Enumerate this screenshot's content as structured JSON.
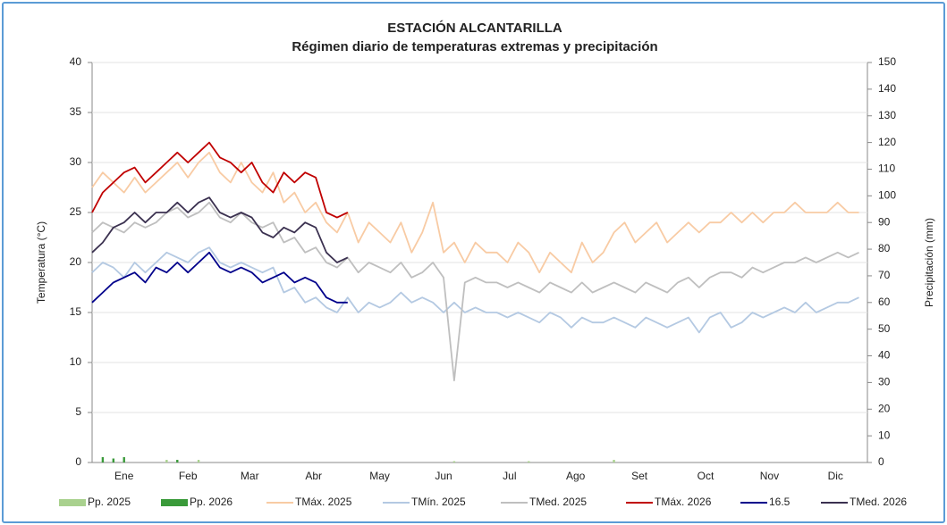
{
  "chart_data": {
    "type": "line",
    "title": "ESTACIÓN ALCANTARILLA",
    "subtitle": "Régimen diario de temperaturas extremas y precipitación",
    "y_label": "Temperatura (°C)",
    "y2_label": "Precipitación (mm)",
    "xlim": [
      1,
      365
    ],
    "xticks": [
      {
        "value": 16,
        "label": "Ene"
      },
      {
        "value": 46,
        "label": "Feb"
      },
      {
        "value": 75,
        "label": "Mar"
      },
      {
        "value": 105,
        "label": "Abr"
      },
      {
        "value": 136,
        "label": "May"
      },
      {
        "value": 166,
        "label": "Jun"
      },
      {
        "value": 197,
        "label": "Jul"
      },
      {
        "value": 228,
        "label": "Ago"
      },
      {
        "value": 258,
        "label": "Set"
      },
      {
        "value": 289,
        "label": "Oct"
      },
      {
        "value": 319,
        "label": "Nov"
      },
      {
        "value": 350,
        "label": "Dic"
      }
    ],
    "ylim": [
      0,
      40
    ],
    "yticks": [
      0,
      5,
      10,
      15,
      20,
      25,
      30,
      35,
      40
    ],
    "y2lim": [
      0,
      150
    ],
    "y2ticks": [
      0,
      10,
      20,
      30,
      40,
      50,
      60,
      70,
      80,
      90,
      100,
      110,
      120,
      130,
      140,
      150
    ],
    "grid": true,
    "legend": "bottom",
    "x": [
      1,
      6,
      11,
      16,
      21,
      26,
      31,
      36,
      41,
      46,
      51,
      56,
      61,
      66,
      71,
      76,
      81,
      86,
      91,
      96,
      101,
      106,
      111,
      116,
      121,
      126,
      131,
      136,
      141,
      146,
      151,
      156,
      161,
      166,
      171,
      176,
      181,
      186,
      191,
      196,
      201,
      206,
      211,
      216,
      221,
      226,
      231,
      236,
      241,
      246,
      251,
      256,
      261,
      266,
      271,
      276,
      281,
      286,
      291,
      296,
      301,
      306,
      311,
      316,
      321,
      326,
      331,
      336,
      341,
      346,
      351,
      356,
      361
    ],
    "series": [
      {
        "name": "Pp. 2025",
        "type": "bar",
        "axis": "y2",
        "color": "#a9d18e",
        "x": [
          36,
          51,
          171,
          206,
          246
        ],
        "values": [
          1,
          1,
          0.5,
          0.5,
          1
        ]
      },
      {
        "name": "Pp. 2026",
        "type": "bar",
        "axis": "y2",
        "color": "#3a9a3a",
        "x": [
          6,
          11,
          16,
          41
        ],
        "values": [
          2,
          1.5,
          2,
          1
        ]
      },
      {
        "name": "TMáx. 2025",
        "type": "line",
        "color": "#f8cba4",
        "values": [
          27.5,
          29,
          28,
          27,
          28.5,
          27,
          28,
          29,
          30,
          28.5,
          30,
          31,
          29,
          28,
          30,
          28,
          27,
          29,
          26,
          27,
          25,
          26,
          24,
          23,
          25,
          22,
          24,
          23,
          22,
          24,
          21,
          23,
          26,
          21,
          22,
          20,
          22,
          21,
          21,
          20,
          22,
          21,
          19,
          21,
          20,
          19,
          22,
          20,
          21,
          23,
          24,
          22,
          23,
          24,
          22,
          23,
          24,
          23,
          24,
          24,
          25,
          24,
          25,
          24,
          25,
          25,
          26,
          25,
          25,
          25,
          26,
          25,
          25
        ]
      },
      {
        "name": "TMín. 2025",
        "type": "line",
        "color": "#b4c9e2",
        "values": [
          19,
          20,
          19.5,
          18.5,
          20,
          19,
          20,
          21,
          20.5,
          20,
          21,
          21.5,
          20,
          19.5,
          20,
          19.5,
          19,
          19.5,
          17,
          17.5,
          16,
          16.5,
          15.5,
          15,
          16.5,
          15,
          16,
          15.5,
          16,
          17,
          16,
          16.5,
          16,
          15,
          16,
          15,
          15.5,
          15,
          15,
          14.5,
          15,
          14.5,
          14,
          15,
          14.5,
          13.5,
          14.5,
          14,
          14,
          14.5,
          14,
          13.5,
          14.5,
          14,
          13.5,
          14,
          14.5,
          13,
          14.5,
          15,
          13.5,
          14,
          15,
          14.5,
          15,
          15.5,
          15,
          16,
          15,
          15.5,
          16,
          16,
          16.5
        ]
      },
      {
        "name": "TMed. 2025",
        "type": "line",
        "color": "#bfbfbf",
        "values": [
          23,
          24,
          23.5,
          23,
          24,
          23.5,
          24,
          25,
          25.5,
          24.5,
          25,
          26,
          24.5,
          24,
          25,
          24,
          23.5,
          24,
          22,
          22.5,
          21,
          21.5,
          20,
          19.5,
          20.5,
          19,
          20,
          19.5,
          19,
          20,
          18.5,
          19,
          20,
          18.5,
          8.2,
          18,
          18.5,
          18,
          18,
          17.5,
          18,
          17.5,
          17,
          18,
          17.5,
          17,
          18,
          17,
          17.5,
          18,
          17.5,
          17,
          18,
          17.5,
          17,
          18,
          18.5,
          17.5,
          18.5,
          19,
          19,
          18.5,
          19.5,
          19,
          19.5,
          20,
          20,
          20.5,
          20,
          20.5,
          21,
          20.5,
          21
        ]
      },
      {
        "name": "TMáx. 2026",
        "type": "line",
        "color": "#c00000",
        "values": [
          25,
          27,
          28,
          29,
          29.5,
          28,
          29,
          30,
          31,
          30,
          31,
          32,
          30.5,
          30,
          29,
          30,
          28,
          27,
          29,
          28,
          29,
          28.5,
          25,
          24.5,
          25,
          null,
          null,
          null,
          null,
          null,
          null,
          null,
          null,
          null,
          null,
          null,
          null,
          null,
          null,
          null,
          null,
          null,
          null,
          null,
          null,
          null,
          null,
          null,
          null,
          null,
          null,
          null,
          null,
          null,
          null,
          null,
          null,
          null,
          null,
          null,
          null,
          null,
          null,
          null,
          null,
          null,
          null,
          null,
          null,
          null,
          null,
          null,
          null
        ]
      },
      {
        "name": "16.5",
        "type": "line",
        "color": "#00008b",
        "values": [
          16,
          17,
          18,
          18.5,
          19,
          18,
          19.5,
          19,
          20,
          19,
          20,
          21,
          19.5,
          19,
          19.5,
          19,
          18,
          18.5,
          19,
          18,
          18.5,
          18,
          16.5,
          16,
          16,
          null,
          null,
          null,
          null,
          null,
          null,
          null,
          null,
          null,
          null,
          null,
          null,
          null,
          null,
          null,
          null,
          null,
          null,
          null,
          null,
          null,
          null,
          null,
          null,
          null,
          null,
          null,
          null,
          null,
          null,
          null,
          null,
          null,
          null,
          null,
          null,
          null,
          null,
          null,
          null,
          null,
          null,
          null,
          null,
          null,
          null,
          null,
          null
        ]
      },
      {
        "name": "TMed. 2026",
        "type": "line",
        "color": "#3b3150",
        "values": [
          21,
          22,
          23.5,
          24,
          25,
          24,
          25,
          25,
          26,
          25,
          26,
          26.5,
          25,
          24.5,
          25,
          24.5,
          23,
          22.5,
          23.5,
          23,
          24,
          23.5,
          21,
          20,
          20.5,
          null,
          null,
          null,
          null,
          null,
          null,
          null,
          null,
          null,
          null,
          null,
          null,
          null,
          null,
          null,
          null,
          null,
          null,
          null,
          null,
          null,
          null,
          null,
          null,
          null,
          null,
          null,
          null,
          null,
          null,
          null,
          null,
          null,
          null,
          null,
          null,
          null,
          null,
          null,
          null,
          null,
          null,
          null,
          null,
          null,
          null,
          null,
          null
        ]
      }
    ]
  }
}
